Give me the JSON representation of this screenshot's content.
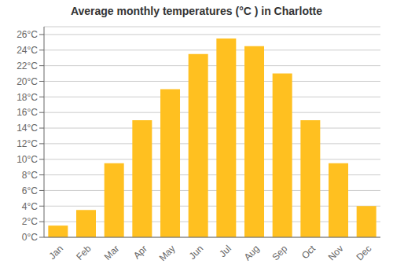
{
  "chart_data": {
    "type": "bar",
    "title": "Average monthly temperatures (°C ) in Charlotte",
    "categories": [
      "Jan",
      "Feb",
      "Mar",
      "Apr",
      "May",
      "Jun",
      "Jul",
      "Aug",
      "Sep",
      "Oct",
      "Nov",
      "Dec"
    ],
    "values": [
      1.5,
      3.5,
      9.5,
      15.0,
      19.0,
      23.5,
      25.5,
      24.5,
      21.0,
      15.0,
      9.5,
      4.0
    ],
    "color": "#FFC020",
    "ylim": [
      0,
      27
    ],
    "yticks": [
      {
        "value": 0,
        "label": "0°C"
      },
      {
        "value": 2,
        "label": "2°C"
      },
      {
        "value": 4,
        "label": "4°C"
      },
      {
        "value": 6,
        "label": "6°C"
      },
      {
        "value": 8,
        "label": "8°C"
      },
      {
        "value": 10,
        "label": "10°C"
      },
      {
        "value": 12,
        "label": "12°C"
      },
      {
        "value": 14,
        "label": "14°C"
      },
      {
        "value": 16,
        "label": "16°C"
      },
      {
        "value": 18,
        "label": "18°C"
      },
      {
        "value": 20,
        "label": "20°C"
      },
      {
        "value": 22,
        "label": "22°C"
      },
      {
        "value": 24,
        "label": "24°C"
      },
      {
        "value": 26,
        "label": "26°C"
      }
    ],
    "grid": true
  }
}
